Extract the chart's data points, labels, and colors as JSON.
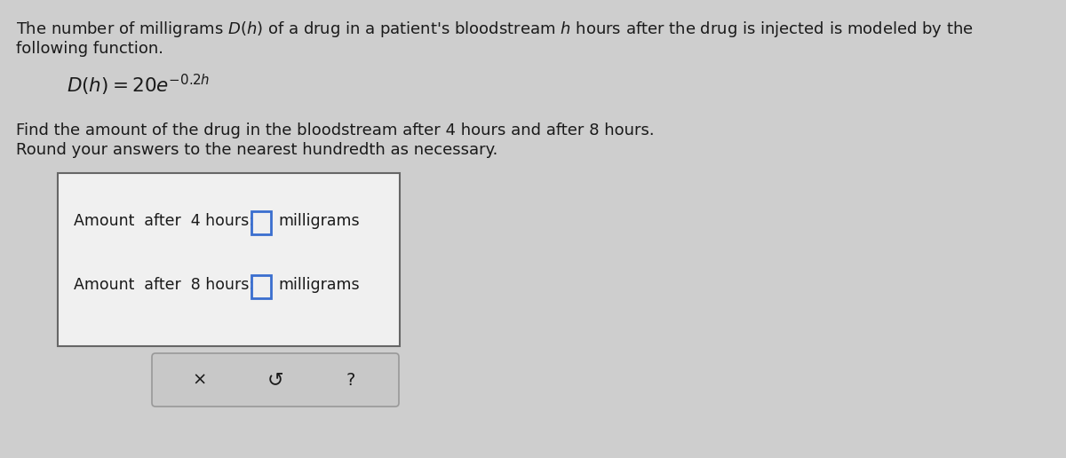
{
  "background_color": "#cecece",
  "text_color": "#1a1a1a",
  "box_color": "#f0f0f0",
  "box_edge_color": "#666666",
  "button_color": "#c8c8c8",
  "button_edge_color": "#999999",
  "input_box_color": "#3a6ecf",
  "line1": "The number of milligrams $D(h)$ of a drug in a patient's bloodstream $h$ hours after the drug is injected is modeled by the",
  "line2": "following function.",
  "formula_main": "$D(h)=20e$",
  "formula_exp": "$^{-0.2\\,h}$",
  "instr1": "Find the amount of the drug in the bloodstream after 4 hours and after 8 hours.",
  "instr2": "Round your answers to the nearest hundredth as necessary.",
  "label1": "Amount  after  4 hours:",
  "label2": "Amount  after  8 hours:",
  "unit": "milligrams",
  "font_size_main": 13.0,
  "font_size_formula": 14.5,
  "font_size_label": 12.5,
  "font_size_button": 13
}
